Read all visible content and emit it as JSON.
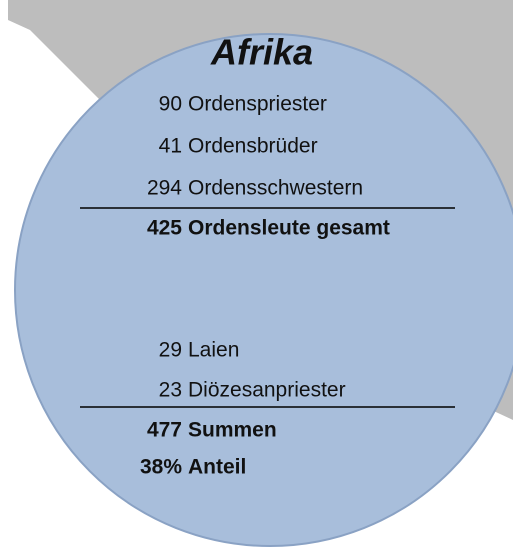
{
  "title": "Afrika",
  "rows": [
    {
      "number": 90,
      "label": "Ordenspriester",
      "bold": false
    },
    {
      "number": 41,
      "label": "Ordensbrüder",
      "bold": false
    },
    {
      "number": 294,
      "label": "Ordensschwestern",
      "bold": false
    },
    {
      "number": 425,
      "label": "Ordensleute gesamt",
      "bold": true
    },
    {
      "number": 29,
      "label": "Laien",
      "bold": false
    },
    {
      "number": 23,
      "label": "Diözesanpriester",
      "bold": false
    },
    {
      "number": 477,
      "label": "Summen",
      "bold": true
    },
    {
      "number": "38%",
      "label": "Anteil",
      "bold": true
    }
  ]
}
